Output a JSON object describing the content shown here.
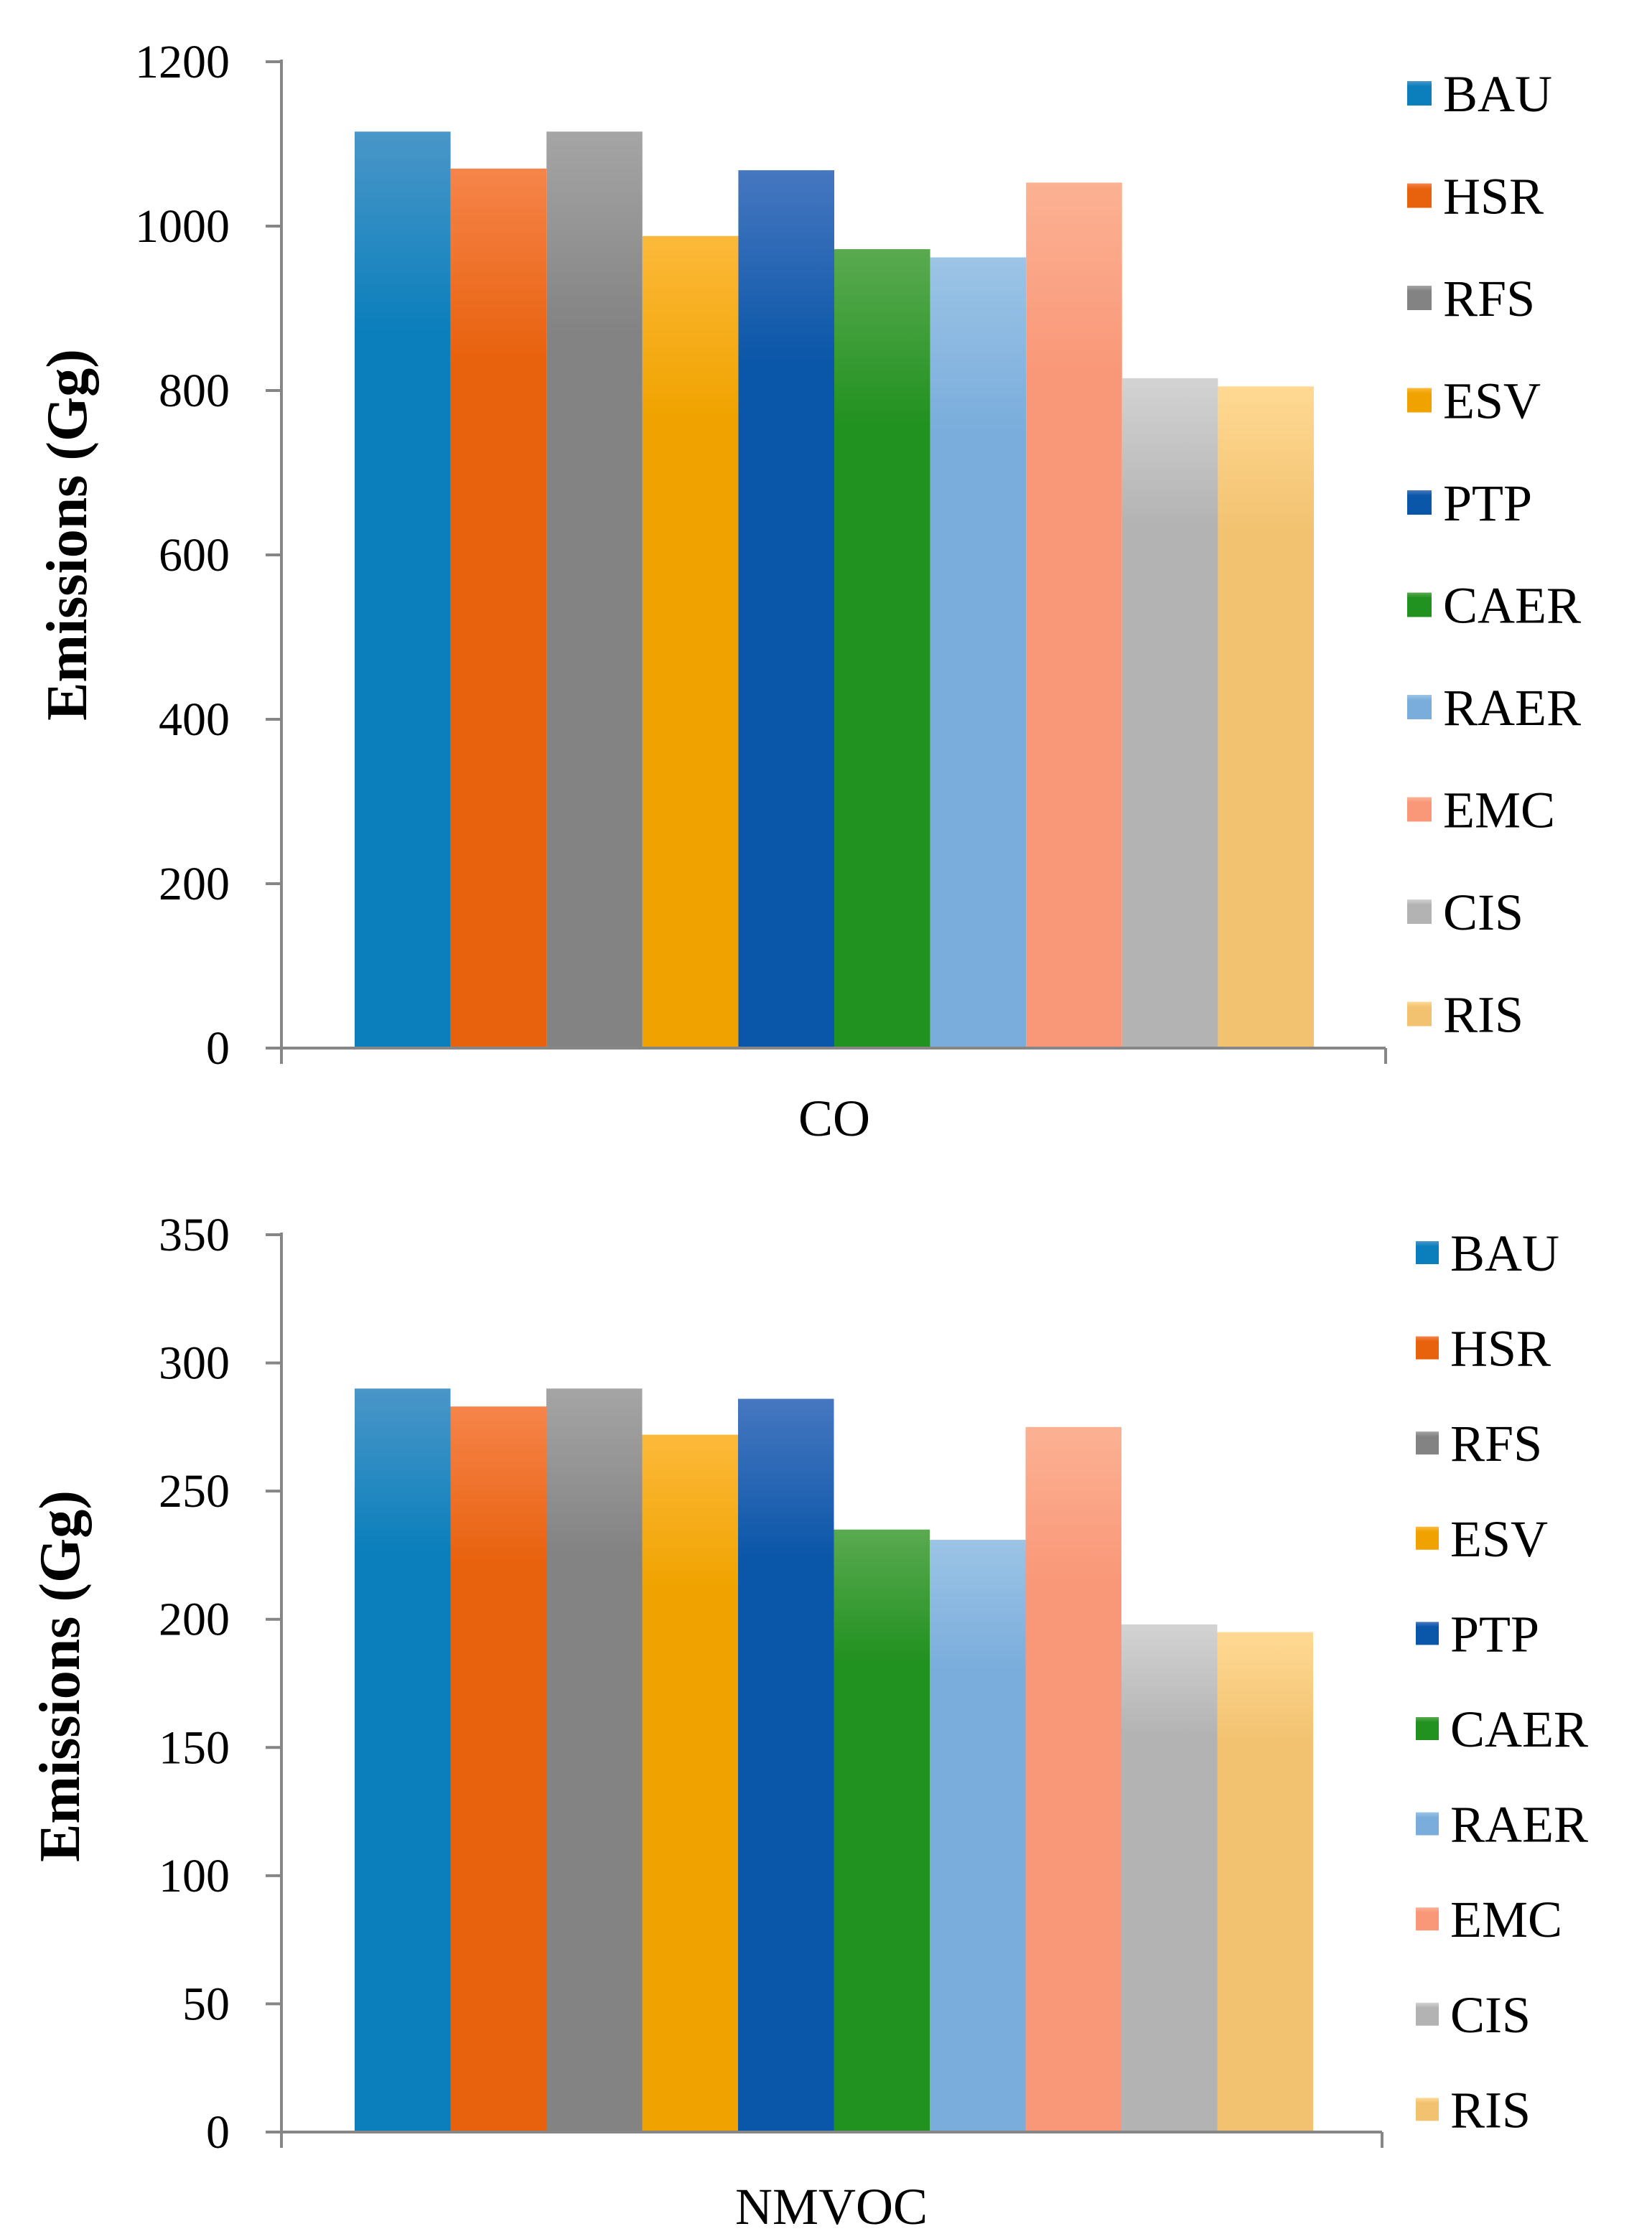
{
  "chart_data": [
    {
      "type": "bar",
      "title": "",
      "xlabel": "CO",
      "ylabel": "Emissions (Gg)",
      "ylim": [
        0,
        1200
      ],
      "yticks": [
        "0",
        "200",
        "400",
        "600",
        "800",
        "1000",
        "1200"
      ],
      "categories": [
        "CO"
      ],
      "series": [
        {
          "name": "BAU",
          "values": [
            1115
          ]
        },
        {
          "name": "HSR",
          "values": [
            1070
          ]
        },
        {
          "name": "RFS",
          "values": [
            1115
          ]
        },
        {
          "name": "ESV",
          "values": [
            988
          ]
        },
        {
          "name": "PTP",
          "values": [
            1068
          ]
        },
        {
          "name": "CAER",
          "values": [
            972
          ]
        },
        {
          "name": "RAER",
          "values": [
            962
          ]
        },
        {
          "name": "EMC",
          "values": [
            1053
          ]
        },
        {
          "name": "CIS",
          "values": [
            815
          ]
        },
        {
          "name": "RIS",
          "values": [
            805
          ]
        }
      ],
      "legend_position": "right"
    },
    {
      "type": "bar",
      "title": "",
      "xlabel": "NMVOC",
      "ylabel": "Emissions (Gg)",
      "ylim": [
        0,
        350
      ],
      "yticks": [
        "0",
        "50",
        "100",
        "150",
        "200",
        "250",
        "300",
        "350"
      ],
      "categories": [
        "NMVOC"
      ],
      "series": [
        {
          "name": "BAU",
          "values": [
            290
          ]
        },
        {
          "name": "HSR",
          "values": [
            283
          ]
        },
        {
          "name": "RFS",
          "values": [
            290
          ]
        },
        {
          "name": "ESV",
          "values": [
            272
          ]
        },
        {
          "name": "PTP",
          "values": [
            286
          ]
        },
        {
          "name": "CAER",
          "values": [
            235
          ]
        },
        {
          "name": "RAER",
          "values": [
            231
          ]
        },
        {
          "name": "EMC",
          "values": [
            275
          ]
        },
        {
          "name": "CIS",
          "values": [
            198
          ]
        },
        {
          "name": "RIS",
          "values": [
            195
          ]
        }
      ],
      "legend_position": "right"
    }
  ],
  "series_colors": {
    "BAU": {
      "top": "#4A96C8",
      "bottom": "#0A7FBC"
    },
    "HSR": {
      "top": "#F6844A",
      "bottom": "#E8610C"
    },
    "RFS": {
      "top": "#A5A5A5",
      "bottom": "#838383"
    },
    "ESV": {
      "top": "#FDB93A",
      "bottom": "#F0A300"
    },
    "PTP": {
      "top": "#4677C0",
      "bottom": "#0A56A8"
    },
    "CAER": {
      "top": "#5AAA50",
      "bottom": "#219120"
    },
    "RAER": {
      "top": "#9CC4E6",
      "bottom": "#7AADDC"
    },
    "EMC": {
      "top": "#FCB193",
      "bottom": "#F99878"
    },
    "CIS": {
      "top": "#D3D3D3",
      "bottom": "#B3B3B3"
    },
    "RIS": {
      "top": "#FFD993",
      "bottom": "#F2C270"
    }
  }
}
